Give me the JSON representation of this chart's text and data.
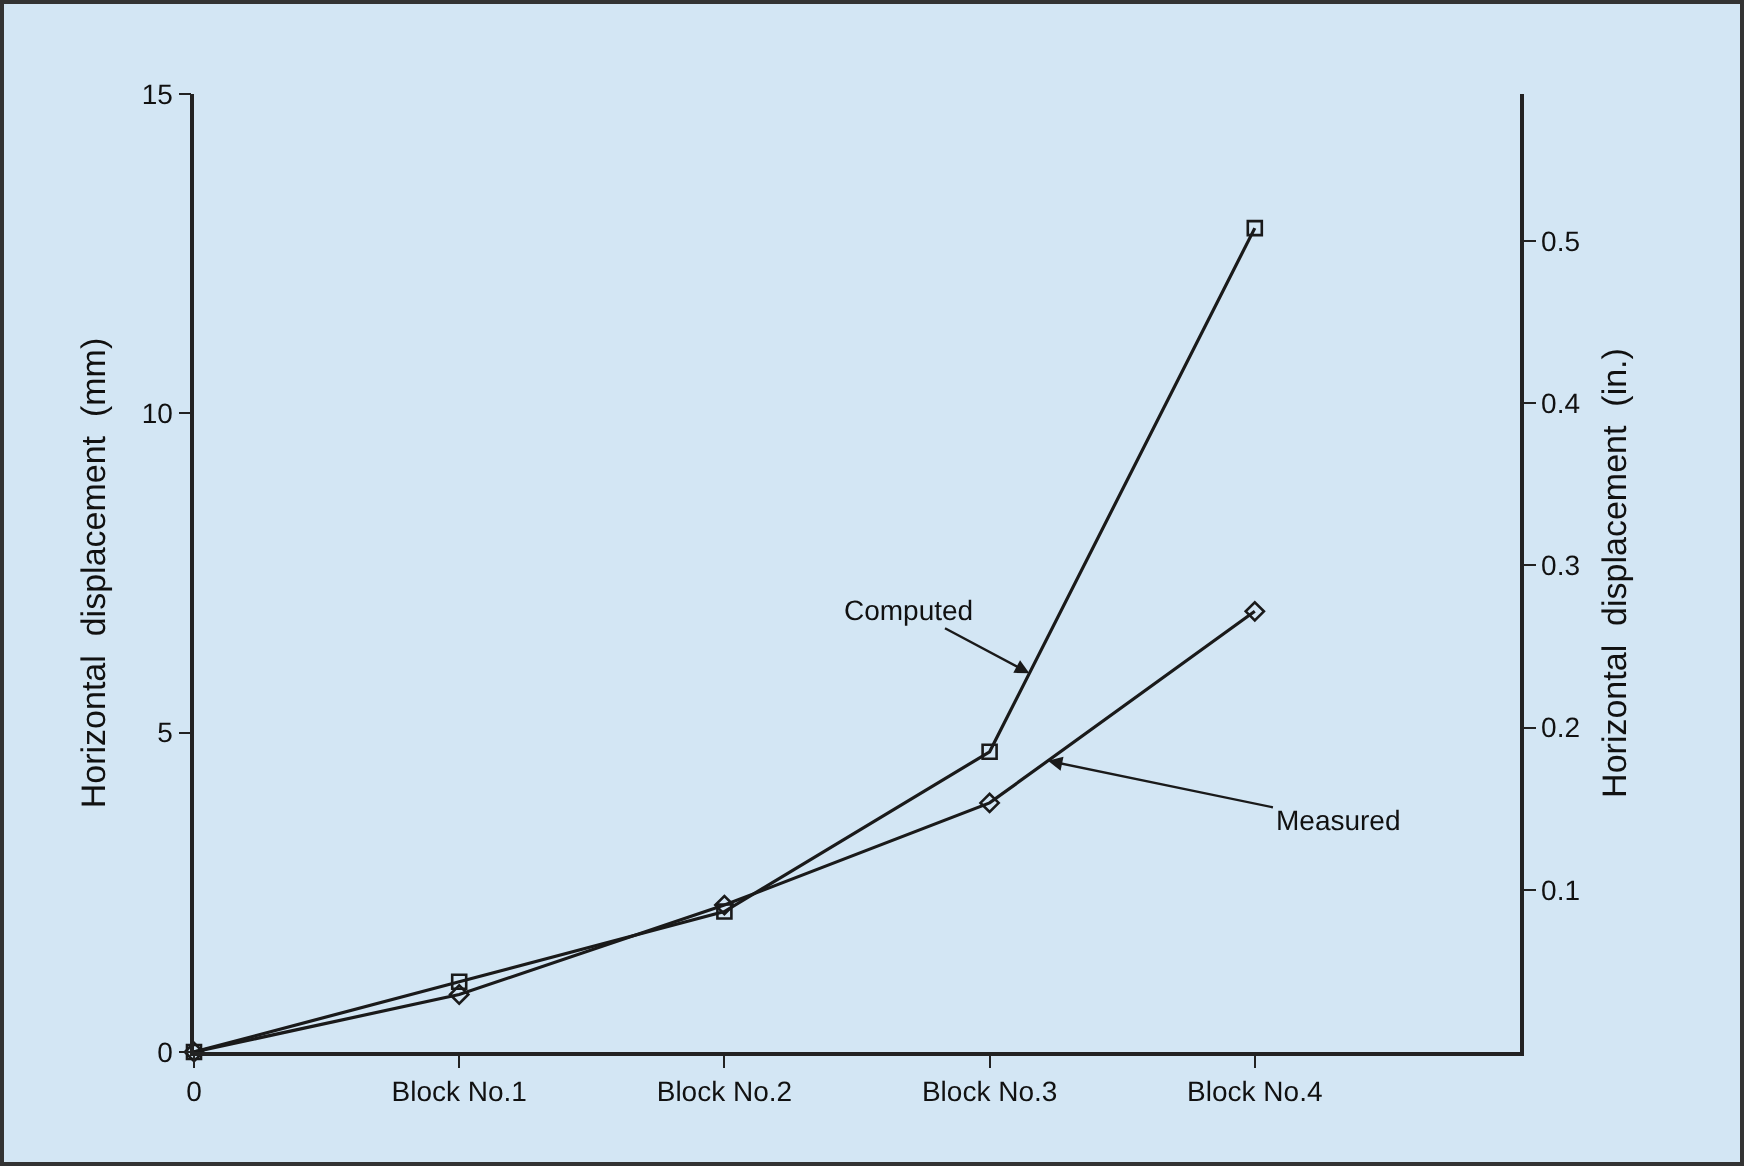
{
  "chart_data": {
    "type": "line",
    "ylabel": "Horizontal  displacement  (mm)",
    "y2label": "Horizontal  displacement  (in.)",
    "categories": [
      "0",
      "Block No.1",
      "Block No.2",
      "Block No.3",
      "Block No.4"
    ],
    "series": [
      {
        "name": "Computed",
        "color": "#1a1a1a",
        "marker": "square",
        "values": [
          0,
          1.1,
          2.2,
          4.7,
          12.9
        ]
      },
      {
        "name": "Measured",
        "color": "#1a1a1a",
        "marker": "diamond",
        "values": [
          0,
          0.9,
          2.3,
          3.9,
          6.9
        ]
      }
    ],
    "ylim": [
      0,
      15
    ],
    "yticks": [
      0,
      5,
      10,
      15
    ],
    "y2lim": [
      0,
      0.5906
    ],
    "y2ticks": [
      0.1,
      0.2,
      0.3,
      0.4,
      0.5
    ],
    "grid": false,
    "legend": false,
    "line_style": "solid"
  }
}
